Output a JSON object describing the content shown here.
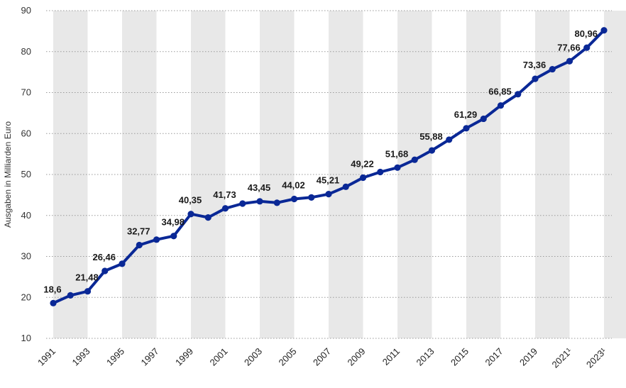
{
  "chart_data": {
    "type": "line",
    "ylabel": "Ausgaben in Milliarden Euro",
    "ylim": [
      10,
      90
    ],
    "yticks": [
      10,
      20,
      30,
      40,
      50,
      60,
      70,
      80,
      90
    ],
    "grid": true,
    "x": [
      1991,
      1992,
      1993,
      1994,
      1995,
      1996,
      1997,
      1998,
      1999,
      2000,
      2001,
      2002,
      2003,
      2004,
      2005,
      2006,
      2007,
      2008,
      2009,
      2010,
      2011,
      2012,
      2013,
      2014,
      2015,
      2016,
      2017,
      2018,
      2019,
      2020,
      2021,
      2022,
      2023
    ],
    "xtick_labels": [
      "1991",
      "1993",
      "1995",
      "1997",
      "1999",
      "2001",
      "2003",
      "2005",
      "2007",
      "2009",
      "2011",
      "2013",
      "2015",
      "2017",
      "2019",
      "2021¹",
      "2023¹"
    ],
    "series": [
      {
        "values": [
          18.6,
          20.5,
          21.48,
          26.46,
          28.2,
          32.77,
          34.1,
          34.98,
          40.35,
          39.5,
          41.73,
          42.9,
          43.45,
          43.1,
          44.02,
          44.4,
          45.21,
          47.0,
          49.22,
          50.6,
          51.68,
          53.6,
          55.88,
          58.5,
          61.29,
          63.6,
          66.85,
          69.6,
          73.36,
          75.7,
          77.66,
          80.96,
          85.2
        ],
        "color": "#0a2896"
      }
    ],
    "data_labels": [
      {
        "year": 1991,
        "text": "18,6"
      },
      {
        "year": 1993,
        "text": "21,48"
      },
      {
        "year": 1994,
        "text": "26,46"
      },
      {
        "year": 1996,
        "text": "32,77"
      },
      {
        "year": 1998,
        "text": "34,98"
      },
      {
        "year": 1999,
        "text": "40,35"
      },
      {
        "year": 2001,
        "text": "41,73"
      },
      {
        "year": 2003,
        "text": "43,45"
      },
      {
        "year": 2005,
        "text": "44,02"
      },
      {
        "year": 2007,
        "text": "45,21"
      },
      {
        "year": 2009,
        "text": "49,22"
      },
      {
        "year": 2011,
        "text": "51,68"
      },
      {
        "year": 2013,
        "text": "55,88"
      },
      {
        "year": 2015,
        "text": "61,29"
      },
      {
        "year": 2017,
        "text": "66,85"
      },
      {
        "year": 2019,
        "text": "73,36"
      },
      {
        "year": 2021,
        "text": "77,66"
      },
      {
        "year": 2022,
        "text": "80,96"
      }
    ],
    "band_color": "#e8e8e8",
    "grid_color": "#9a9a9a"
  }
}
